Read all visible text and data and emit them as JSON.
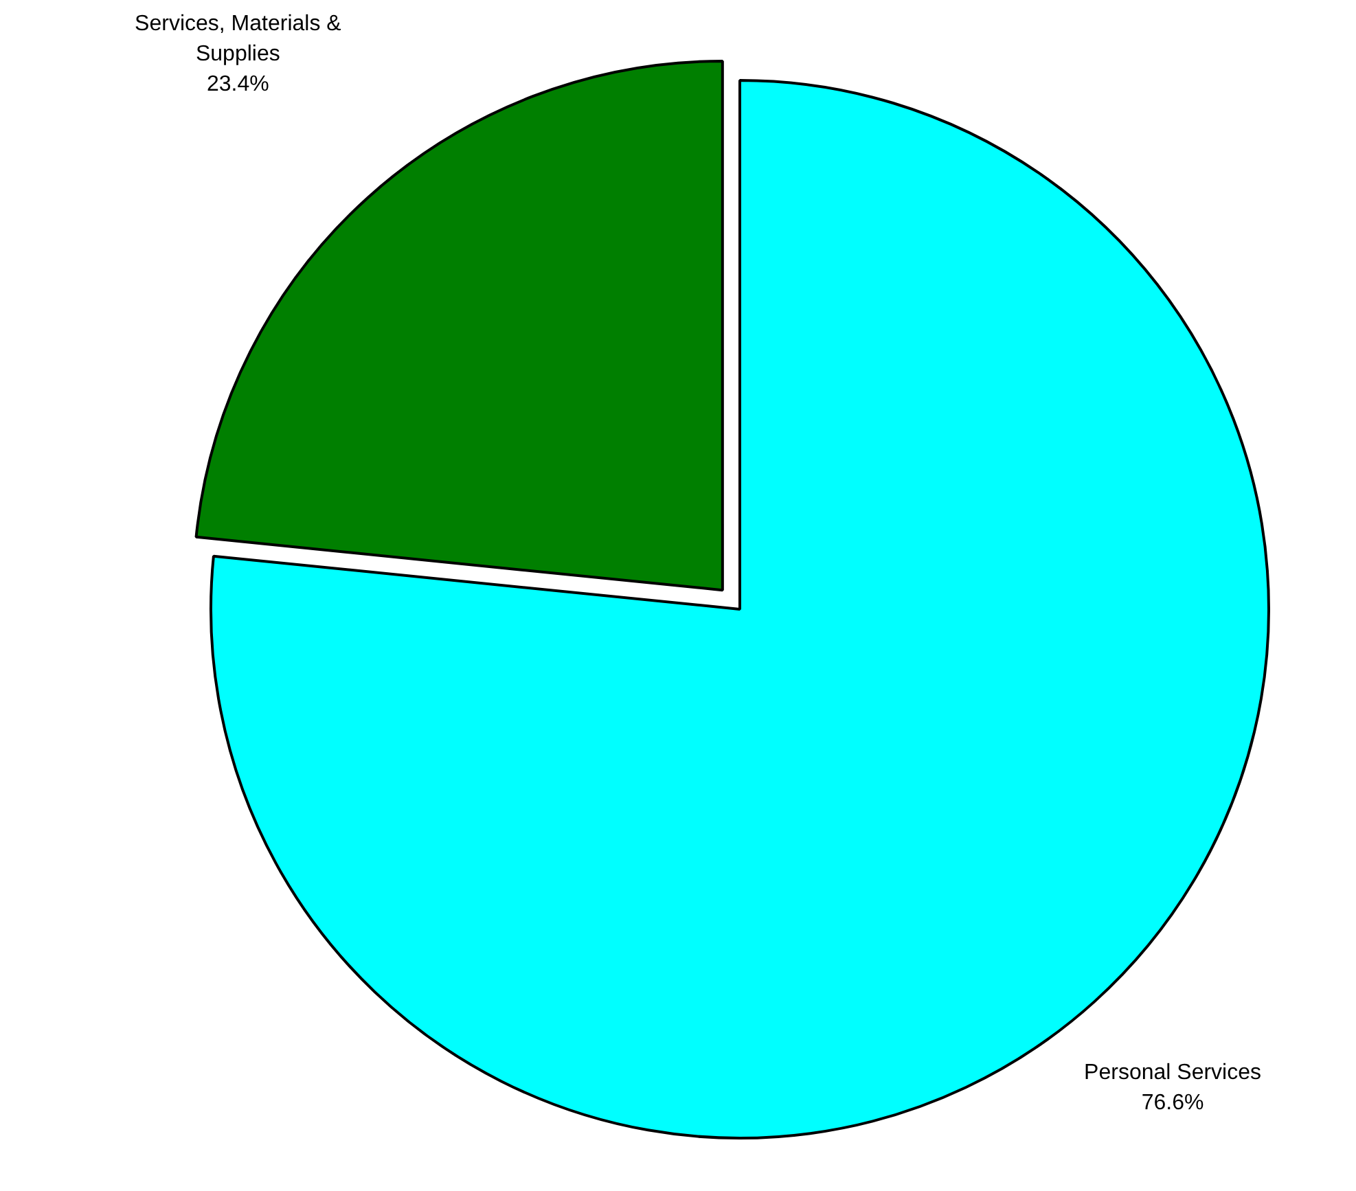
{
  "chart_data": {
    "type": "pie",
    "categories": [
      "Personal Services",
      "Services, Materials & Supplies"
    ],
    "values": [
      76.6,
      23.4
    ],
    "colors": [
      "#00ffff",
      "#007f00"
    ],
    "value_labels": [
      "76.6%",
      "23.4%"
    ],
    "legend": false
  }
}
